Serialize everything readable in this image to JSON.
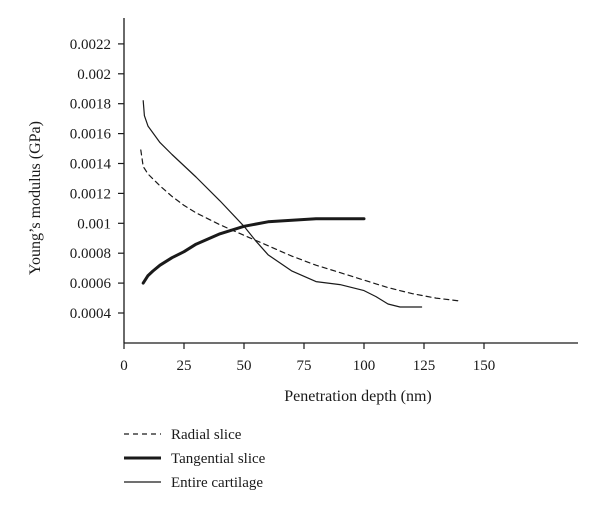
{
  "chart_data": {
    "type": "line",
    "xlabel": "Penetration depth (nm)",
    "ylabel": "Young’s modulus (GPa)",
    "xlim": [
      0,
      190
    ],
    "ylim": [
      0.0002,
      0.0024
    ],
    "x_ticks": [
      "0",
      "25",
      "50",
      "75",
      "100",
      "125",
      "150"
    ],
    "x_tick_values": [
      0,
      25,
      50,
      75,
      100,
      125,
      150
    ],
    "y_ticks": [
      "0.0004",
      "0.0006",
      "0.0008",
      "0.001",
      "0.0012",
      "0.0014",
      "0.0016",
      "0.0018",
      "0.002",
      "0.0022"
    ],
    "y_tick_values": [
      0.0004,
      0.0006,
      0.0008,
      0.001,
      0.0012,
      0.0014,
      0.0016,
      0.0018,
      0.002,
      0.0022
    ],
    "legend_position": "bottom-left",
    "series": [
      {
        "name": "Radial slice",
        "style": "dashed",
        "color": "#1a1a1a",
        "x": [
          7,
          8,
          10,
          15,
          20,
          25,
          30,
          40,
          50,
          60,
          70,
          80,
          90,
          100,
          110,
          120,
          130,
          140
        ],
        "y": [
          0.00149,
          0.00138,
          0.00133,
          0.00125,
          0.00118,
          0.00112,
          0.00107,
          0.00099,
          0.00092,
          0.00085,
          0.00078,
          0.00072,
          0.00067,
          0.00062,
          0.00057,
          0.00053,
          0.0005,
          0.00048
        ]
      },
      {
        "name": "Tangential slice",
        "style": "thick",
        "color": "#1a1a1a",
        "x": [
          8,
          10,
          12,
          15,
          20,
          25,
          30,
          40,
          50,
          60,
          70,
          80,
          90,
          100
        ],
        "y": [
          0.0006,
          0.00065,
          0.00068,
          0.00072,
          0.00077,
          0.00081,
          0.00086,
          0.00093,
          0.00098,
          0.00101,
          0.00102,
          0.00103,
          0.00103,
          0.00103
        ]
      },
      {
        "name": "Entire cartilage",
        "style": "thin",
        "color": "#1a1a1a",
        "x": [
          8,
          8.5,
          10,
          15,
          20,
          30,
          40,
          50,
          55,
          60,
          70,
          80,
          90,
          100,
          105,
          110,
          115,
          120,
          124
        ],
        "y": [
          0.00182,
          0.00172,
          0.00165,
          0.00154,
          0.00146,
          0.00131,
          0.00115,
          0.00098,
          0.00088,
          0.00079,
          0.00068,
          0.00061,
          0.00059,
          0.00055,
          0.00051,
          0.00046,
          0.00044,
          0.00044,
          0.00044
        ]
      }
    ]
  }
}
